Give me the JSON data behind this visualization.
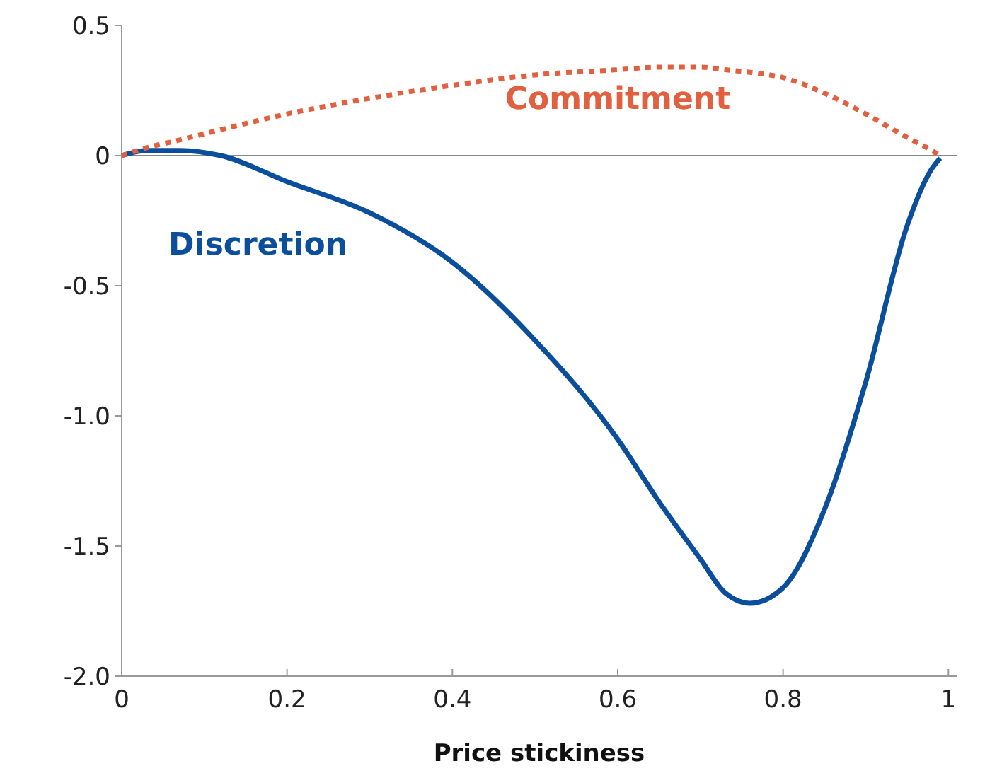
{
  "chart_data": {
    "type": "line",
    "xlabel": "Price stickiness",
    "x": [
      0,
      0.03,
      0.07,
      0.12,
      0.2,
      0.3,
      0.4,
      0.5,
      0.6,
      0.65,
      0.7,
      0.73,
      0.76,
      0.8,
      0.85,
      0.9,
      0.95,
      0.98,
      0.99
    ],
    "series": [
      {
        "name": "Discretion",
        "color": "#0b4f9c",
        "line_style": "solid",
        "values": [
          0,
          0.02,
          0.02,
          0.0,
          -0.1,
          -0.22,
          -0.41,
          -0.71,
          -1.09,
          -1.33,
          -1.55,
          -1.68,
          -1.72,
          -1.66,
          -1.36,
          -0.87,
          -0.27,
          -0.05,
          -0.01
        ]
      },
      {
        "name": "Commitment",
        "color": "#e0603f",
        "line_style": "dotted",
        "values": [
          0,
          0.03,
          0.06,
          0.1,
          0.16,
          0.22,
          0.27,
          0.31,
          0.33,
          0.34,
          0.34,
          0.33,
          0.32,
          0.3,
          0.24,
          0.16,
          0.07,
          0.02,
          0
        ]
      }
    ],
    "xlim": [
      0,
      1.01
    ],
    "ylim": [
      -2,
      0.5
    ],
    "xticks": [
      0,
      0.2,
      0.4,
      0.6,
      0.8,
      1
    ],
    "yticks": [
      0.5,
      0,
      {
        "value": -0.5,
        "label": "-0.5"
      },
      {
        "value": -1,
        "label": "-1.0"
      },
      {
        "value": -1.5,
        "label": "-1.5"
      },
      {
        "value": -2,
        "label": "-2.0"
      }
    ],
    "ref_lines": [
      {
        "axis": "y",
        "value": 0,
        "color": "#888888"
      }
    ],
    "grid": false
  }
}
